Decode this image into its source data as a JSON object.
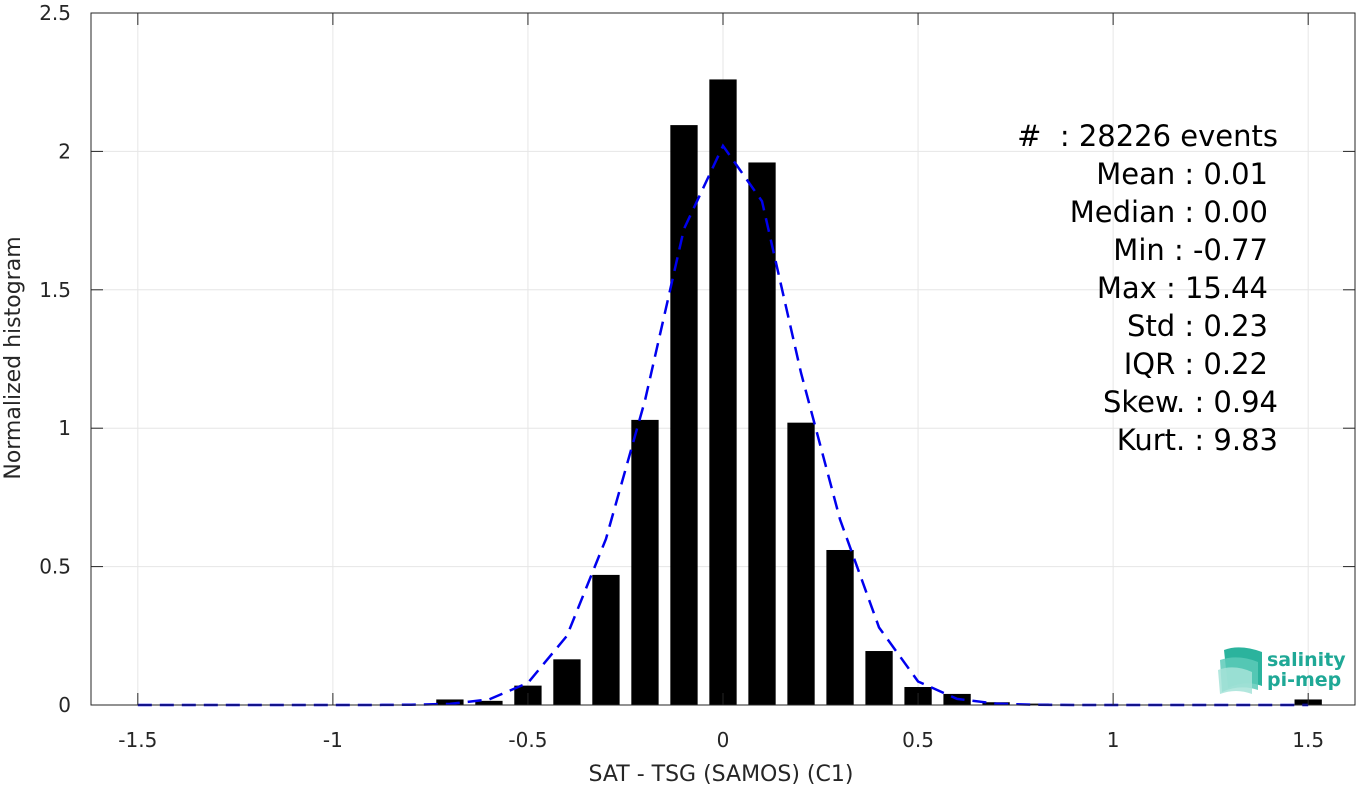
{
  "chart_data": {
    "type": "bar",
    "xlabel": "SAT - TSG (SAMOS) (C1)",
    "ylabel": "Normalized histogram",
    "xlim": [
      -1.62,
      1.62
    ],
    "ylim": [
      0,
      2.5
    ],
    "xticks": [
      -1.5,
      -1,
      -0.5,
      0,
      0.5,
      1,
      1.5
    ],
    "xtick_labels": [
      "-1.5",
      "-1",
      "-0.5",
      "0",
      "0.5",
      "1",
      "1.5"
    ],
    "yticks": [
      0,
      0.5,
      1,
      1.5,
      2,
      2.5
    ],
    "ytick_labels": [
      "0",
      "0.5",
      "1",
      "1.5",
      "2",
      "2.5"
    ],
    "grid": true,
    "bar_width": 0.07,
    "bars": [
      {
        "x": -0.7,
        "y": 0.02
      },
      {
        "x": -0.6,
        "y": 0.015
      },
      {
        "x": -0.5,
        "y": 0.07
      },
      {
        "x": -0.4,
        "y": 0.165
      },
      {
        "x": -0.3,
        "y": 0.47
      },
      {
        "x": -0.2,
        "y": 1.03
      },
      {
        "x": -0.1,
        "y": 2.095
      },
      {
        "x": 0.0,
        "y": 2.26
      },
      {
        "x": 0.1,
        "y": 1.96
      },
      {
        "x": 0.2,
        "y": 1.02
      },
      {
        "x": 0.3,
        "y": 0.56
      },
      {
        "x": 0.4,
        "y": 0.195
      },
      {
        "x": 0.5,
        "y": 0.065
      },
      {
        "x": 0.6,
        "y": 0.04
      },
      {
        "x": 0.7,
        "y": 0.01
      },
      {
        "x": 0.8,
        "y": 0.005
      },
      {
        "x": 1.5,
        "y": 0.02
      }
    ],
    "fit_curve": {
      "style": "dashed",
      "color": "#0000ee",
      "x": [
        -1.5,
        -1.4,
        -1.3,
        -1.2,
        -1.1,
        -1.0,
        -0.9,
        -0.8,
        -0.7,
        -0.6,
        -0.5,
        -0.4,
        -0.3,
        -0.2,
        -0.1,
        0.0,
        0.1,
        0.2,
        0.3,
        0.4,
        0.5,
        0.6,
        0.7,
        0.8,
        0.9,
        1.0,
        1.1,
        1.2,
        1.3,
        1.4,
        1.5
      ],
      "y": [
        0,
        0,
        0,
        0,
        0,
        0,
        0,
        0.001,
        0.004,
        0.02,
        0.08,
        0.25,
        0.6,
        1.1,
        1.72,
        2.02,
        1.82,
        1.2,
        0.67,
        0.28,
        0.085,
        0.022,
        0.005,
        0.001,
        0,
        0,
        0,
        0,
        0,
        0,
        0
      ]
    },
    "bar_color": "#000000"
  },
  "stats": [
    {
      "text": "#  : 28226 events",
      "anchor": "end"
    },
    {
      "text": "Mean : 0.01",
      "anchor": "end"
    },
    {
      "text": "Median : 0.00",
      "anchor": "end"
    },
    {
      "text": "Min : -0.77",
      "anchor": "end"
    },
    {
      "text": "Max : 15.44",
      "anchor": "end"
    },
    {
      "text": "Std : 0.23",
      "anchor": "end"
    },
    {
      "text": "IQR : 0.22",
      "anchor": "end"
    },
    {
      "text": "Skew. : 0.94",
      "anchor": "end"
    },
    {
      "text": "Kurt. : 9.83",
      "anchor": "end"
    }
  ],
  "logo": {
    "line1": "salinity",
    "line2": "pi-mep",
    "color": "#1fa896"
  }
}
